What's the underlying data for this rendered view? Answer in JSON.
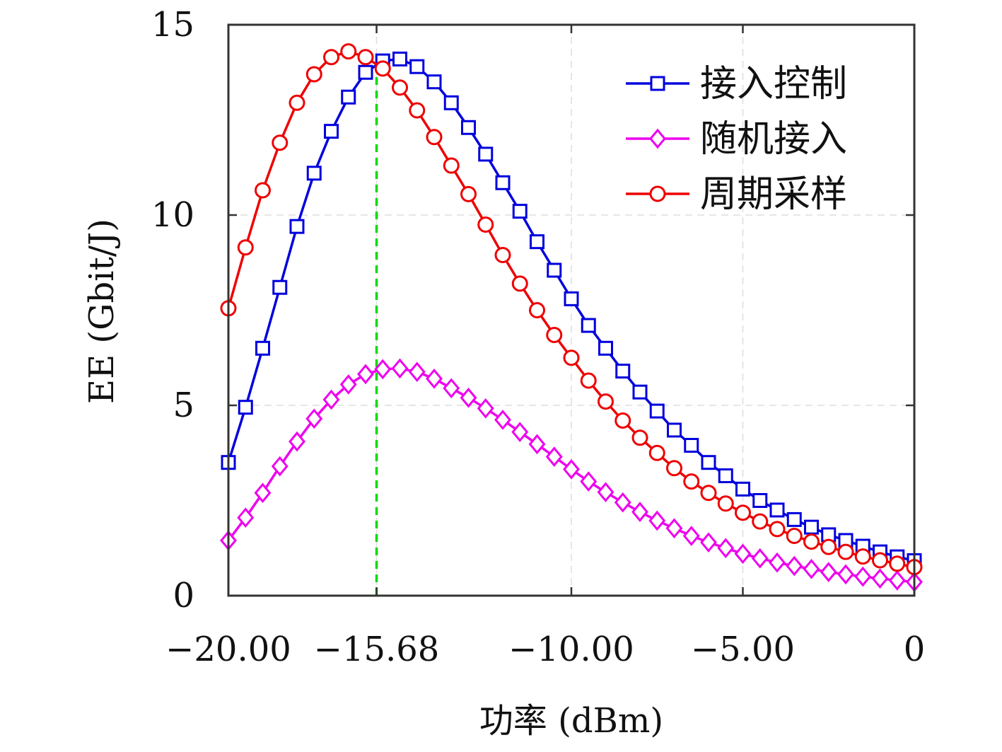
{
  "chart_data": {
    "type": "line",
    "title": "",
    "xlabel": "功率 (dBm)",
    "ylabel": "EE (Gbit/J)",
    "xlim": [
      -20,
      0
    ],
    "ylim": [
      0,
      15
    ],
    "x_ticks": [
      -20,
      -15.68,
      -10,
      -5,
      0
    ],
    "x_tick_labels": [
      "−20.00",
      "−15.68",
      "−10.00",
      "−5.00",
      "0"
    ],
    "y_ticks": [
      0,
      5,
      10,
      15
    ],
    "y_tick_labels": [
      "0",
      "5",
      "10",
      "15"
    ],
    "grid": true,
    "legend_position": "top-right",
    "reference_line": {
      "x": -15.68,
      "color": "#00dd00",
      "style": "dashed"
    },
    "x": [
      -20,
      -19.5,
      -19,
      -18.5,
      -18,
      -17.5,
      -17,
      -16.5,
      -16,
      -15.5,
      -15,
      -14.5,
      -14,
      -13.5,
      -13,
      -12.5,
      -12,
      -11.5,
      -11,
      -10.5,
      -10,
      -9.5,
      -9,
      -8.5,
      -8,
      -7.5,
      -7,
      -6.5,
      -6,
      -5.5,
      -5,
      -4.5,
      -4,
      -3.5,
      -3,
      -2.5,
      -2,
      -1.5,
      -1,
      -0.5,
      0
    ],
    "series": [
      {
        "name": "接入控制",
        "color": "#0000dd",
        "marker": "square",
        "values": [
          3.5,
          4.95,
          6.5,
          8.1,
          9.7,
          11.1,
          12.2,
          13.1,
          13.75,
          14.05,
          14.1,
          13.9,
          13.5,
          12.95,
          12.3,
          11.6,
          10.85,
          10.1,
          9.3,
          8.55,
          7.8,
          7.1,
          6.5,
          5.9,
          5.35,
          4.85,
          4.35,
          3.95,
          3.5,
          3.15,
          2.8,
          2.5,
          2.25,
          2.0,
          1.8,
          1.6,
          1.45,
          1.3,
          1.15,
          1.02,
          0.92
        ]
      },
      {
        "name": "随机接入",
        "color": "#ee00ee",
        "marker": "diamond",
        "values": [
          1.45,
          2.05,
          2.7,
          3.4,
          4.05,
          4.65,
          5.15,
          5.55,
          5.82,
          5.95,
          5.97,
          5.88,
          5.7,
          5.45,
          5.2,
          4.92,
          4.62,
          4.3,
          3.98,
          3.65,
          3.32,
          3.0,
          2.72,
          2.45,
          2.2,
          1.97,
          1.77,
          1.57,
          1.4,
          1.25,
          1.1,
          0.98,
          0.87,
          0.78,
          0.7,
          0.62,
          0.56,
          0.5,
          0.45,
          0.4,
          0.36
        ]
      },
      {
        "name": "周期采样",
        "color": "#ee0000",
        "marker": "circle",
        "values": [
          7.55,
          9.15,
          10.65,
          11.9,
          12.95,
          13.7,
          14.15,
          14.3,
          14.15,
          13.85,
          13.35,
          12.75,
          12.05,
          11.3,
          10.55,
          9.75,
          8.95,
          8.2,
          7.5,
          6.85,
          6.25,
          5.65,
          5.1,
          4.6,
          4.15,
          3.75,
          3.35,
          3.0,
          2.7,
          2.42,
          2.18,
          1.95,
          1.75,
          1.57,
          1.42,
          1.28,
          1.15,
          1.03,
          0.93,
          0.84,
          0.75
        ]
      }
    ]
  }
}
